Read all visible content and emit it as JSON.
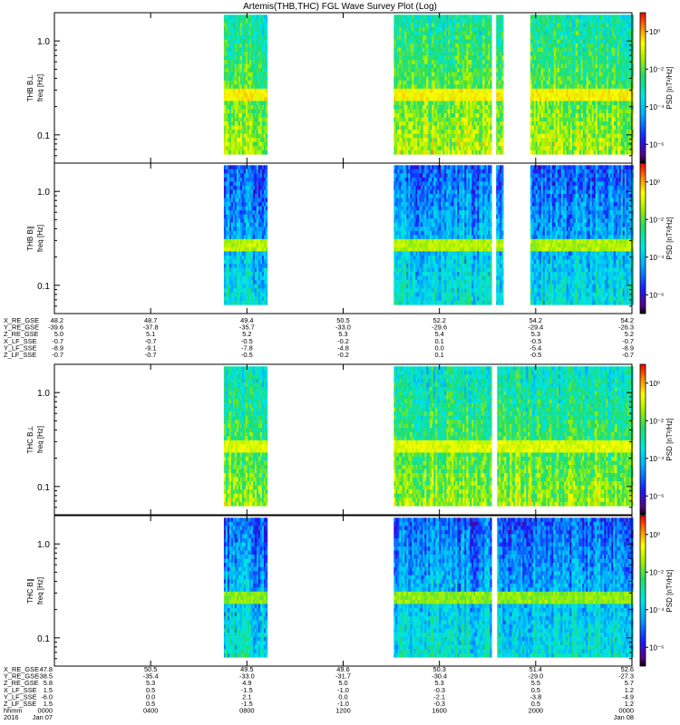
{
  "chart_data": {
    "type": "heatmap",
    "title": "Artemis(THB,THC) FGL Wave Survey Plot (Log)",
    "ylim_hz": [
      0.05,
      2.0
    ],
    "y_scale": "log",
    "y_ticks": [
      "1.0",
      "0.1"
    ],
    "y_tick_values": [
      1.0,
      0.1
    ],
    "colorbar": {
      "label": "PSD [nT²/Hz]",
      "ticks": [
        "10⁰",
        "10⁻²",
        "10⁻⁴",
        "10⁻⁶"
      ],
      "tick_exponents": [
        0,
        -2,
        -4,
        -6
      ],
      "range_exponents": [
        -7,
        1
      ]
    },
    "panels": [
      {
        "probe": "THB",
        "ylabel_probe": "THB B⊥",
        "ylabel_freq": "freq [Hz]",
        "component": "perp",
        "data_intervals": [
          [
            0.333,
            0.417
          ],
          [
            0.667,
            0.858
          ],
          [
            0.868,
            0.882
          ],
          [
            0.935,
            1.135
          ]
        ],
        "level": -1.8,
        "band_level": -0.6
      },
      {
        "probe": "THB",
        "ylabel_probe": "THB B∥",
        "ylabel_freq": "freq [Hz]",
        "component": "par",
        "data_intervals": [
          [
            0.333,
            0.417
          ],
          [
            0.667,
            0.858
          ],
          [
            0.868,
            0.882
          ],
          [
            0.935,
            1.135
          ]
        ],
        "level": -3.9,
        "band_level": -1.3
      },
      {
        "probe": "THC",
        "ylabel_probe": "THC B⊥",
        "ylabel_freq": "freq [Hz]",
        "component": "perp",
        "data_intervals": [
          [
            0.333,
            0.417
          ],
          [
            0.667,
            0.858
          ],
          [
            0.87,
            1.135
          ]
        ],
        "level": -2.1,
        "band_level": -0.9
      },
      {
        "probe": "THC",
        "ylabel_probe": "THC B∥",
        "ylabel_freq": "freq [Hz]",
        "component": "par",
        "data_intervals": [
          [
            0.333,
            0.417
          ],
          [
            0.667,
            0.858
          ],
          [
            0.87,
            1.135
          ]
        ],
        "level": -3.9,
        "band_level": -1.6
      }
    ],
    "time_axes": [
      {
        "rows": [
          {
            "label": "X_RE_GSE",
            "values": [
              "48.2",
              "48.7",
              "49.4",
              "50.5",
              "52.2",
              "54.2",
              "54.2"
            ]
          },
          {
            "label": "Y_RE_GSE",
            "values": [
              "-39.6",
              "-37.8",
              "-35.7",
              "-33.0",
              "-29.6",
              "-29.4",
              "-26.3"
            ]
          },
          {
            "label": "Z_RE_GSE",
            "values": [
              "5.0",
              "5.1",
              "5.2",
              "5.3",
              "5.4",
              "5.3",
              "5.2"
            ]
          },
          {
            "label": "X_LF_SSE",
            "values": [
              "-0.7",
              "-0.7",
              "-0.5",
              "-0.2",
              "0.1",
              "-0.5",
              "-0.7"
            ]
          },
          {
            "label": "Y_LF_SSE",
            "values": [
              "-8.9",
              "-9.1",
              "-7.8",
              "-4.8",
              "0.0",
              "-5.4",
              "-8.9"
            ]
          },
          {
            "label": "Z_LF_SSE",
            "values": [
              "-0.7",
              "-0.7",
              "-0.5",
              "-0.2",
              "0.1",
              "-0.5",
              "-0.7"
            ]
          }
        ]
      },
      {
        "rows": [
          {
            "label": "X_RE_GSE",
            "values": [
              "47.8",
              "50.5",
              "49.5",
              "49.6",
              "50.3",
              "51.4",
              "52.6"
            ]
          },
          {
            "label": "Y_RE_GSE",
            "values": [
              "-38.5",
              "-35.4",
              "-33.0",
              "-31.7",
              "-30.4",
              "-29.0",
              "-27.3"
            ]
          },
          {
            "label": "Z_RE_GSE",
            "values": [
              "5.8",
              "5.3",
              "4.9",
              "5.0",
              "5.3",
              "5.5",
              "5.7"
            ]
          },
          {
            "label": "X_LF_SSE",
            "values": [
              "1.5",
              "0.5",
              "-1.5",
              "-1.0",
              "-0.3",
              "0.5",
              "1.2"
            ]
          },
          {
            "label": "Y_LF_SSE",
            "values": [
              "-6.0",
              "0.0",
              "2.1",
              "0.0",
              "-2.1",
              "-3.8",
              "-4.9"
            ]
          },
          {
            "label": "Z_LF_SSE",
            "values": [
              "1.5",
              "0.5",
              "-1.5",
              "-1.0",
              "-0.3",
              "0.5",
              "1.2"
            ]
          },
          {
            "label": "hhmm",
            "values": [
              "0000",
              "0400",
              "0800",
              "1200",
              "1600",
              "2000",
              "0000"
            ]
          },
          {
            "label": "2016",
            "values": [
              "Jan 07",
              "",
              "",
              "",
              "",
              "",
              "Jan 08"
            ]
          }
        ]
      }
    ]
  }
}
